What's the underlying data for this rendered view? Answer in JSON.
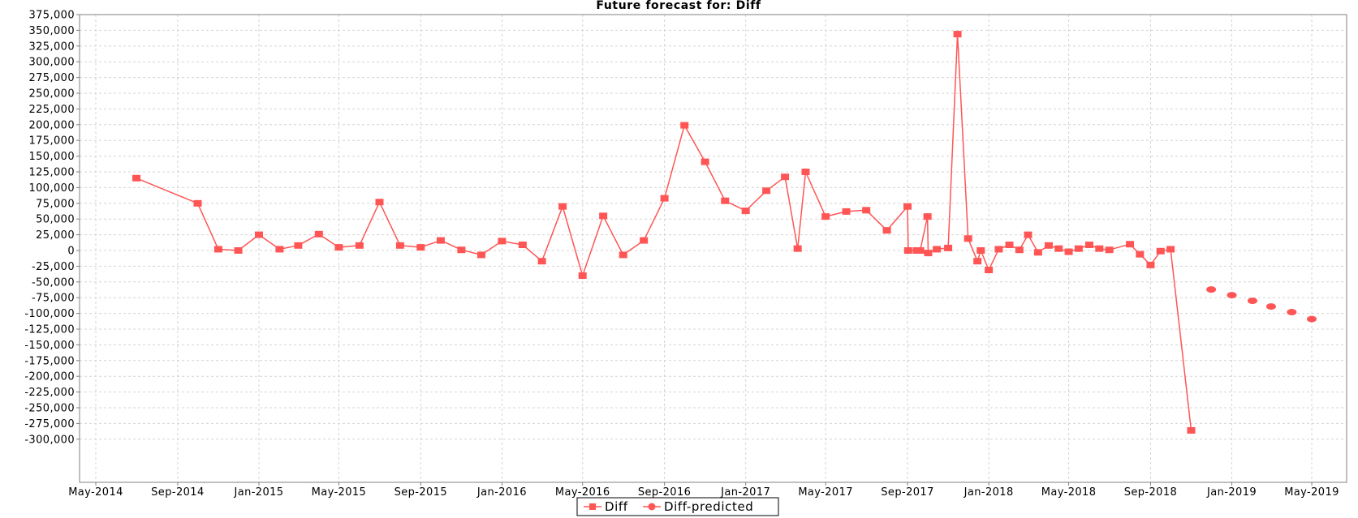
{
  "chart_data": {
    "type": "line",
    "title": "Future forecast for: Diff",
    "xlabel": "",
    "ylabel": "",
    "ylim": [
      -310000,
      375000
    ],
    "xlim": [
      "2014-04-01",
      "2019-06-01"
    ],
    "grid": true,
    "legend_position": "bottom",
    "y_ticks": [
      375000,
      350000,
      325000,
      300000,
      275000,
      250000,
      225000,
      200000,
      175000,
      150000,
      125000,
      100000,
      75000,
      50000,
      25000,
      0,
      -25000,
      -50000,
      -75000,
      -100000,
      -125000,
      -150000,
      -175000,
      -200000,
      -225000,
      -250000,
      -275000,
      -300000
    ],
    "y_tick_labels": [
      "375,000",
      "350,000",
      "325,000",
      "300,000",
      "275,000",
      "250,000",
      "225,000",
      "200,000",
      "175,000",
      "150,000",
      "125,000",
      "100,000",
      "75,000",
      "50,000",
      "25,000",
      "0",
      "-25,000",
      "-50,000",
      "-75,000",
      "-100,000",
      "-125,000",
      "-150,000",
      "-175,000",
      "-200,000",
      "-225,000",
      "-250,000",
      "-275,000",
      "-300,000"
    ],
    "x_ticks": [
      "2014-05-01",
      "2014-09-01",
      "2015-01-01",
      "2015-05-01",
      "2015-09-01",
      "2016-01-01",
      "2016-05-01",
      "2016-09-01",
      "2017-01-01",
      "2017-05-01",
      "2017-09-01",
      "2018-01-01",
      "2018-05-01",
      "2018-09-01",
      "2019-01-01",
      "2019-05-01"
    ],
    "x_tick_labels": [
      "May-2014",
      "Sep-2014",
      "Jan-2015",
      "May-2015",
      "Sep-2015",
      "Jan-2016",
      "May-2016",
      "Sep-2016",
      "Jan-2017",
      "May-2017",
      "Sep-2017",
      "Jan-2018",
      "May-2018",
      "Sep-2018",
      "Jan-2019",
      "May-2019"
    ],
    "series": [
      {
        "name": "Diff",
        "marker": "square",
        "connected": true,
        "color": "#ff5555",
        "points": [
          {
            "x": "2014-07-01",
            "y": 115000
          },
          {
            "x": "2014-10-01",
            "y": 75000
          },
          {
            "x": "2014-11-01",
            "y": 2000
          },
          {
            "x": "2014-12-01",
            "y": 0
          },
          {
            "x": "2015-01-01",
            "y": 25000
          },
          {
            "x": "2015-02-01",
            "y": 2000
          },
          {
            "x": "2015-03-01",
            "y": 8000
          },
          {
            "x": "2015-04-01",
            "y": 26000
          },
          {
            "x": "2015-05-01",
            "y": 5000
          },
          {
            "x": "2015-06-01",
            "y": 8000
          },
          {
            "x": "2015-07-01",
            "y": 77000
          },
          {
            "x": "2015-08-01",
            "y": 8000
          },
          {
            "x": "2015-09-01",
            "y": 5000
          },
          {
            "x": "2015-10-01",
            "y": 16000
          },
          {
            "x": "2015-11-01",
            "y": 1000
          },
          {
            "x": "2015-12-01",
            "y": -7000
          },
          {
            "x": "2016-01-01",
            "y": 15000
          },
          {
            "x": "2016-02-01",
            "y": 9000
          },
          {
            "x": "2016-03-01",
            "y": -17000
          },
          {
            "x": "2016-04-01",
            "y": 70000
          },
          {
            "x": "2016-05-01",
            "y": -40000
          },
          {
            "x": "2016-06-01",
            "y": 55000
          },
          {
            "x": "2016-07-01",
            "y": -7000
          },
          {
            "x": "2016-08-01",
            "y": 16000
          },
          {
            "x": "2016-09-01",
            "y": 83000
          },
          {
            "x": "2016-10-01",
            "y": 199000
          },
          {
            "x": "2016-11-01",
            "y": 141000
          },
          {
            "x": "2016-12-01",
            "y": 79000
          },
          {
            "x": "2017-01-01",
            "y": 63000
          },
          {
            "x": "2017-02-01",
            "y": 95000
          },
          {
            "x": "2017-03-01",
            "y": 117000
          },
          {
            "x": "2017-03-20",
            "y": 3000
          },
          {
            "x": "2017-04-01",
            "y": 125000
          },
          {
            "x": "2017-05-01",
            "y": 54000
          },
          {
            "x": "2017-06-01",
            "y": 62000
          },
          {
            "x": "2017-07-01",
            "y": 64000
          },
          {
            "x": "2017-08-01",
            "y": 32000
          },
          {
            "x": "2017-09-01",
            "y": 70000
          },
          {
            "x": "2017-09-02",
            "y": 0
          },
          {
            "x": "2017-09-15",
            "y": 0
          },
          {
            "x": "2017-09-20",
            "y": 0
          },
          {
            "x": "2017-10-01",
            "y": 54000
          },
          {
            "x": "2017-10-02",
            "y": -4000
          },
          {
            "x": "2017-10-15",
            "y": 2000
          },
          {
            "x": "2017-11-01",
            "y": 4000
          },
          {
            "x": "2017-11-15",
            "y": 344000
          },
          {
            "x": "2017-12-01",
            "y": 19000
          },
          {
            "x": "2017-12-15",
            "y": -17000
          },
          {
            "x": "2017-12-20",
            "y": 0
          },
          {
            "x": "2018-01-01",
            "y": -31000
          },
          {
            "x": "2018-01-16",
            "y": 2000
          },
          {
            "x": "2018-02-01",
            "y": 9000
          },
          {
            "x": "2018-02-16",
            "y": 1000
          },
          {
            "x": "2018-03-01",
            "y": 25000
          },
          {
            "x": "2018-03-16",
            "y": -3000
          },
          {
            "x": "2018-04-01",
            "y": 8000
          },
          {
            "x": "2018-04-16",
            "y": 3000
          },
          {
            "x": "2018-05-01",
            "y": -2000
          },
          {
            "x": "2018-05-16",
            "y": 3000
          },
          {
            "x": "2018-06-01",
            "y": 9000
          },
          {
            "x": "2018-06-16",
            "y": 3000
          },
          {
            "x": "2018-07-01",
            "y": 1000
          },
          {
            "x": "2018-08-01",
            "y": 10000
          },
          {
            "x": "2018-08-16",
            "y": -6000
          },
          {
            "x": "2018-09-01",
            "y": -23000
          },
          {
            "x": "2018-09-16",
            "y": -1000
          },
          {
            "x": "2018-10-01",
            "y": 2000
          },
          {
            "x": "2018-11-01",
            "y": -286000
          }
        ]
      },
      {
        "name": "Diff-predicted",
        "marker": "circle",
        "connected": false,
        "color": "#ff5555",
        "points": [
          {
            "x": "2018-12-01",
            "y": -62000
          },
          {
            "x": "2019-01-01",
            "y": -71000
          },
          {
            "x": "2019-02-01",
            "y": -80000
          },
          {
            "x": "2019-03-01",
            "y": -89000
          },
          {
            "x": "2019-04-01",
            "y": -98000
          },
          {
            "x": "2019-05-01",
            "y": -109000
          }
        ]
      }
    ]
  }
}
